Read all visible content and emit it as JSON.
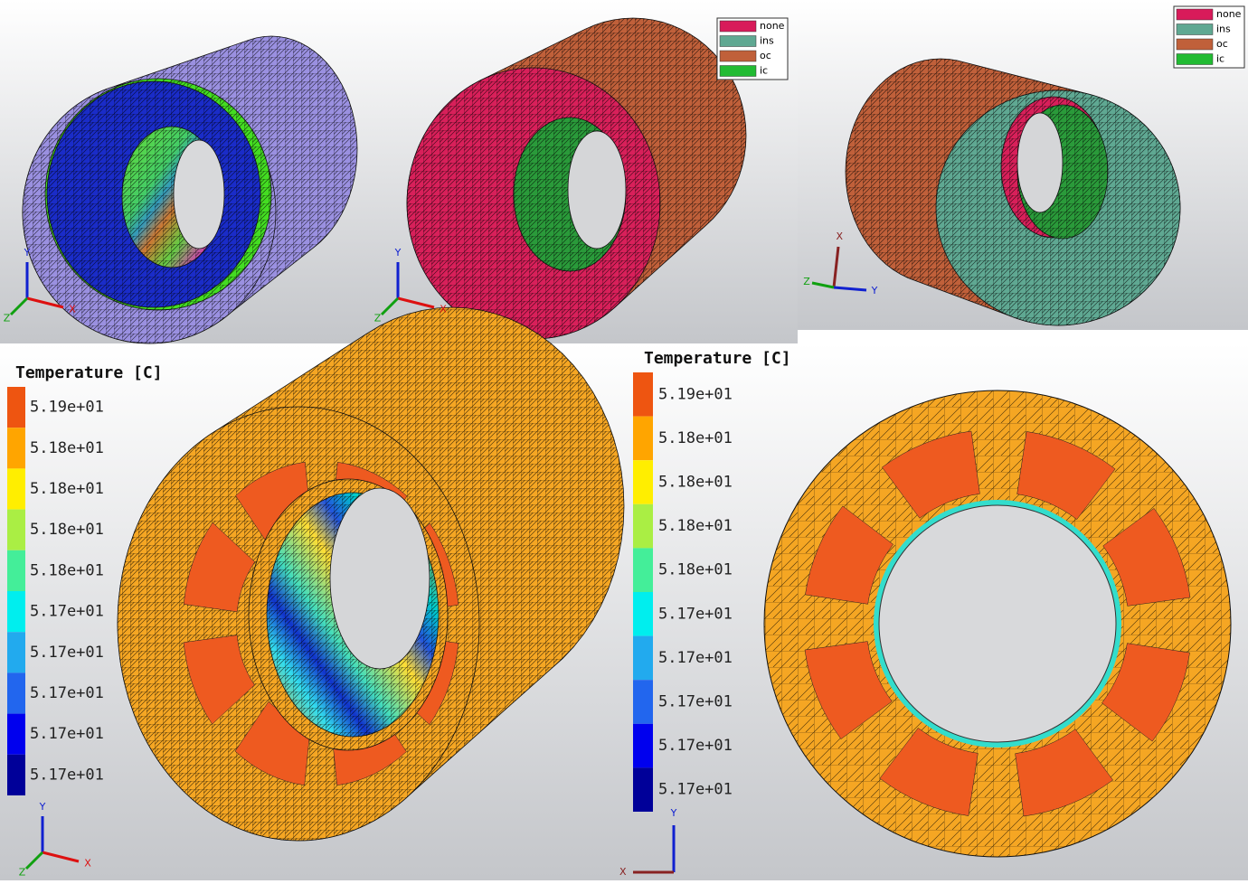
{
  "views": [
    {
      "triad": {
        "x": "X",
        "y": "Y",
        "z": "Z"
      }
    },
    {
      "triad": {
        "x": "X",
        "y": "Y",
        "z": "Z"
      },
      "legend": [
        {
          "label": "none",
          "color": "#d81b5a"
        },
        {
          "label": "ins",
          "color": "#5fa892"
        },
        {
          "label": "oc",
          "color": "#c0603a"
        },
        {
          "label": "ic",
          "color": "#22bb33"
        }
      ]
    },
    {
      "triad": {
        "x": "X",
        "y": "Y",
        "z": "Z"
      },
      "legend": [
        {
          "label": "none",
          "color": "#d81b5a"
        },
        {
          "label": "ins",
          "color": "#5fa892"
        },
        {
          "label": "oc",
          "color": "#c0603a"
        },
        {
          "label": "ic",
          "color": "#22bb33"
        }
      ]
    },
    {
      "triad": {
        "x": "X",
        "y": "Y",
        "z": "Z"
      },
      "colorbar": {
        "title": "Temperature [C]",
        "colors": [
          "#ee5511",
          "#ffa500",
          "#ffee00",
          "#aaee44",
          "#44ee99",
          "#00eeee",
          "#22aaee",
          "#2266ee",
          "#0000ee",
          "#000099"
        ],
        "labels": [
          "5.19e+01",
          "5.18e+01",
          "5.18e+01",
          "5.18e+01",
          "5.18e+01",
          "5.17e+01",
          "5.17e+01",
          "5.17e+01",
          "5.17e+01",
          "5.17e+01"
        ]
      }
    },
    {
      "triad": {
        "x": "X",
        "y": "Y"
      },
      "colorbar": {
        "title": "Temperature [C]",
        "colors": [
          "#ee5511",
          "#ffa500",
          "#ffee00",
          "#aaee44",
          "#44ee99",
          "#00eeee",
          "#22aaee",
          "#2266ee",
          "#0000ee",
          "#000099"
        ],
        "labels": [
          "5.19e+01",
          "5.18e+01",
          "5.18e+01",
          "5.18e+01",
          "5.18e+01",
          "5.17e+01",
          "5.17e+01",
          "5.17e+01",
          "5.17e+01",
          "5.17e+01"
        ]
      }
    }
  ]
}
